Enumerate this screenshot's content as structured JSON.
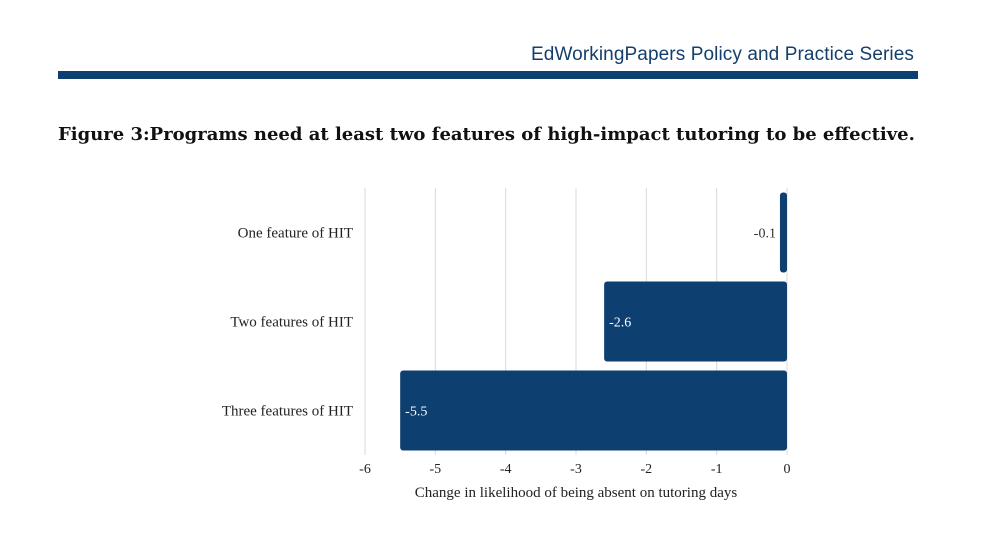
{
  "header": {
    "series_name": "EdWorkingPapers Policy and Practice Series"
  },
  "figure": {
    "title": "Figure 3:Programs need at least two features of high-impact tutoring to be effective."
  },
  "colors": {
    "bar": "#0d3f71",
    "header_rule": "#0d3f71",
    "header_text": "#143f6b",
    "grid": "#d9d9d9"
  },
  "chart_data": {
    "type": "bar",
    "orientation": "horizontal",
    "categories": [
      "One feature of HIT",
      "Two features of HIT",
      "Three features of HIT"
    ],
    "values": [
      -0.1,
      -2.6,
      -5.5
    ],
    "data_labels": [
      "-0.1",
      "-2.6",
      "-5.5"
    ],
    "xlabel": "Change in likelihood of being absent on tutoring days",
    "ylabel": "",
    "xlim": [
      -6,
      0
    ],
    "xticks": [
      -6,
      -5,
      -4,
      -3,
      -2,
      -1,
      0
    ],
    "xtick_labels": [
      "-6",
      "-5",
      "-4",
      "-3",
      "-2",
      "-1",
      "0"
    ],
    "grid": true
  }
}
